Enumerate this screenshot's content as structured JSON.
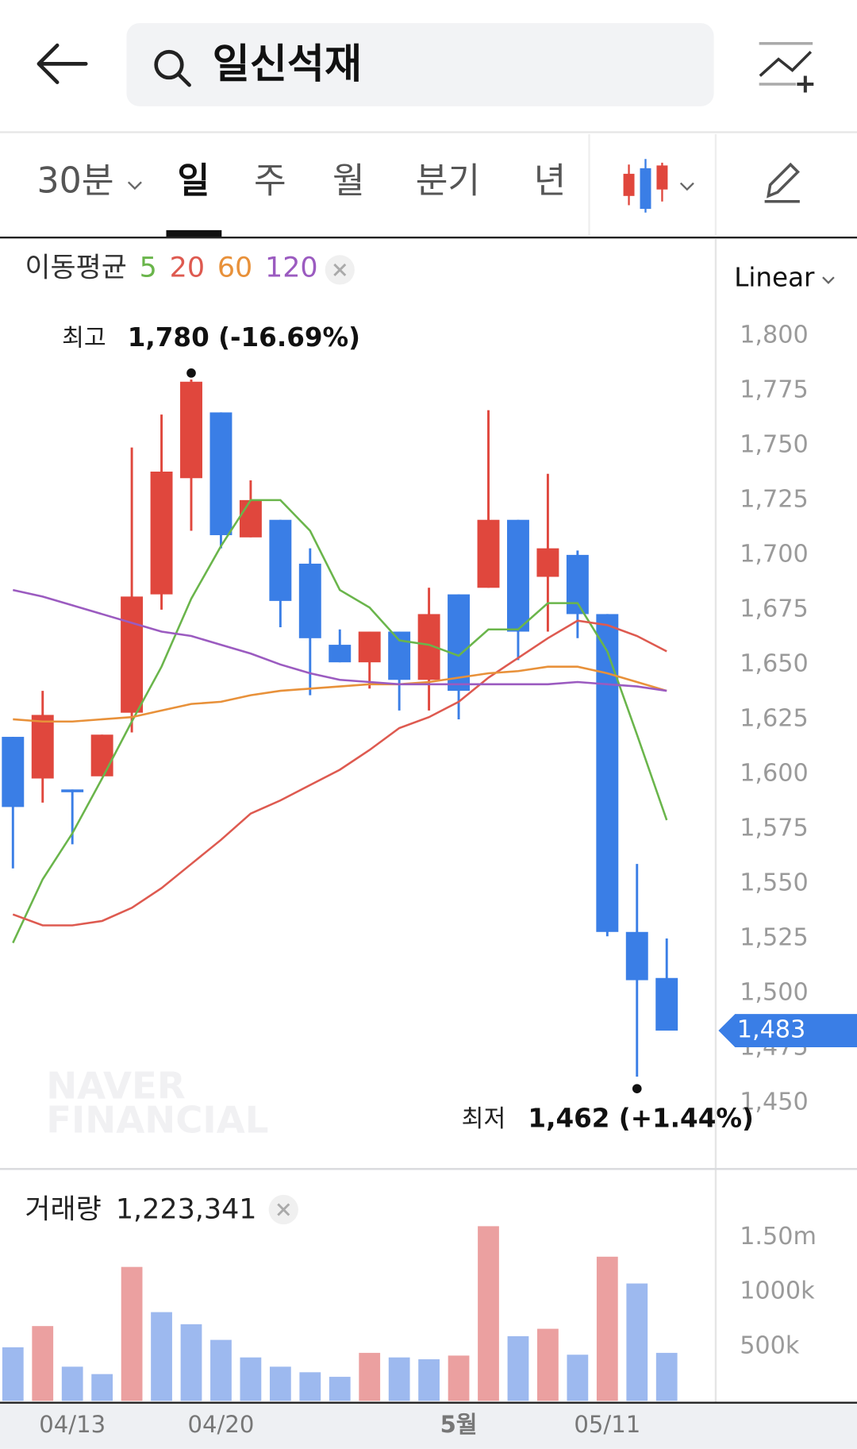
{
  "header": {
    "search": "일신석재"
  },
  "tabs": [
    "30분",
    "일",
    "주",
    "월",
    "분기",
    "년"
  ],
  "scale": "Linear",
  "watermark": [
    "NAVER",
    "FINANCIAL"
  ],
  "chart_data": [
    {
      "type": "candlestick",
      "title": "이동평균",
      "categories": [
        null,
        null,
        "04/13",
        null,
        null,
        null,
        null,
        "04/20",
        null,
        null,
        null,
        null,
        null,
        null,
        null,
        "5월",
        null,
        null,
        null,
        null,
        "05/11",
        null,
        null
      ],
      "open": [
        1617,
        1598,
        1593,
        1599,
        1628,
        1682,
        1735,
        1765,
        1708,
        1716,
        1696,
        1659,
        1651,
        1665,
        1643,
        1682,
        1685,
        1716,
        1690,
        1700,
        1673,
        1528,
        1507
      ],
      "high": [
        1617,
        1638,
        1593,
        1618,
        1749,
        1764,
        1780,
        1765,
        1734,
        1716,
        1703,
        1666,
        1665,
        1665,
        1685,
        1682,
        1766,
        1716,
        1737,
        1702,
        1673,
        1559,
        1525
      ],
      "low": [
        1557,
        1587,
        1568,
        1599,
        1619,
        1675,
        1711,
        1703,
        1708,
        1667,
        1636,
        1651,
        1639,
        1629,
        1629,
        1625,
        1685,
        1652,
        1665,
        1662,
        1526,
        1462,
        1483
      ],
      "close": [
        1585,
        1627,
        1592,
        1618,
        1681,
        1738,
        1779,
        1709,
        1725,
        1679,
        1662,
        1651,
        1665,
        1643,
        1673,
        1638,
        1716,
        1665,
        1703,
        1673,
        1528,
        1506,
        1483
      ],
      "up_color": "#e0473d",
      "down_color": "#3a7ee6",
      "series": [
        {
          "name": "5",
          "color": "#6ab54b",
          "values": [
            1523,
            1552,
            1573,
            1598,
            1624,
            1649,
            1680,
            1704,
            1725,
            1725,
            1711,
            1684,
            1676,
            1661,
            1659,
            1654,
            1666,
            1666,
            1678,
            1678,
            1656,
            1618,
            1579
          ]
        },
        {
          "name": "20",
          "color": "#de5a50",
          "values": [
            1536,
            1531,
            1531,
            1533,
            1539,
            1548,
            1559,
            1570,
            1582,
            1588,
            1595,
            1602,
            1611,
            1621,
            1626,
            1633,
            1644,
            1653,
            1662,
            1670,
            1668,
            1663,
            1656
          ]
        },
        {
          "name": "60",
          "color": "#e8913a",
          "values": [
            1625,
            1624,
            1624,
            1625,
            1626,
            1629,
            1632,
            1633,
            1636,
            1638,
            1639,
            1640,
            1641,
            1641,
            1642,
            1644,
            1646,
            1647,
            1649,
            1649,
            1646,
            1642,
            1638
          ]
        },
        {
          "name": "120",
          "color": "#9b5bc0",
          "values": [
            1684,
            1681,
            1677,
            1673,
            1669,
            1665,
            1663,
            1659,
            1655,
            1650,
            1646,
            1643,
            1642,
            1641,
            1641,
            1641,
            1641,
            1641,
            1641,
            1642,
            1641,
            1640,
            1638
          ]
        }
      ],
      "ylim": [
        1430,
        1814
      ],
      "yticks": [
        {
          "value": 1800,
          "label": "1,800"
        },
        {
          "value": 1775,
          "label": "1,775"
        },
        {
          "value": 1750,
          "label": "1,750"
        },
        {
          "value": 1725,
          "label": "1,725"
        },
        {
          "value": 1700,
          "label": "1,700"
        },
        {
          "value": 1675,
          "label": "1,675"
        },
        {
          "value": 1650,
          "label": "1,650"
        },
        {
          "value": 1625,
          "label": "1,625"
        },
        {
          "value": 1600,
          "label": "1,600"
        },
        {
          "value": 1575,
          "label": "1,575"
        },
        {
          "value": 1550,
          "label": "1,550"
        },
        {
          "value": 1525,
          "label": "1,525"
        },
        {
          "value": 1500,
          "label": "1,500"
        },
        {
          "value": 1475,
          "label": "1,475"
        },
        {
          "value": 1450,
          "label": "1,450"
        }
      ],
      "grid": false,
      "high_note": {
        "name": "최고",
        "text": "1,780 (-16.69%)"
      },
      "low_note": {
        "name": "최저",
        "text": "1,462 (+1.44%)"
      },
      "last": {
        "value": 1483,
        "label": "1,483"
      }
    },
    {
      "type": "bar",
      "title": "거래량",
      "value_text": "1,223,341",
      "values": [
        492000,
        687000,
        314000,
        246000,
        1230000,
        815000,
        704000,
        560000,
        399000,
        314000,
        263000,
        221000,
        441000,
        399000,
        382000,
        416000,
        1604000,
        594000,
        662000,
        424000,
        1324000,
        1078000,
        441000
      ],
      "colors": [
        "#9db9ef",
        "#eba0a0",
        "#9db9ef",
        "#9db9ef",
        "#eba0a0",
        "#9db9ef",
        "#9db9ef",
        "#9db9ef",
        "#9db9ef",
        "#9db9ef",
        "#9db9ef",
        "#9db9ef",
        "#eba0a0",
        "#9db9ef",
        "#9db9ef",
        "#eba0a0",
        "#eba0a0",
        "#9db9ef",
        "#eba0a0",
        "#9db9ef",
        "#eba0a0",
        "#9db9ef",
        "#9db9ef"
      ],
      "ylim": [
        0,
        1680000
      ],
      "yticks": [
        {
          "value": 1500000,
          "label": "1.50m"
        },
        {
          "value": 1000000,
          "label": "1000k"
        },
        {
          "value": 500000,
          "label": "500k"
        }
      ]
    }
  ]
}
